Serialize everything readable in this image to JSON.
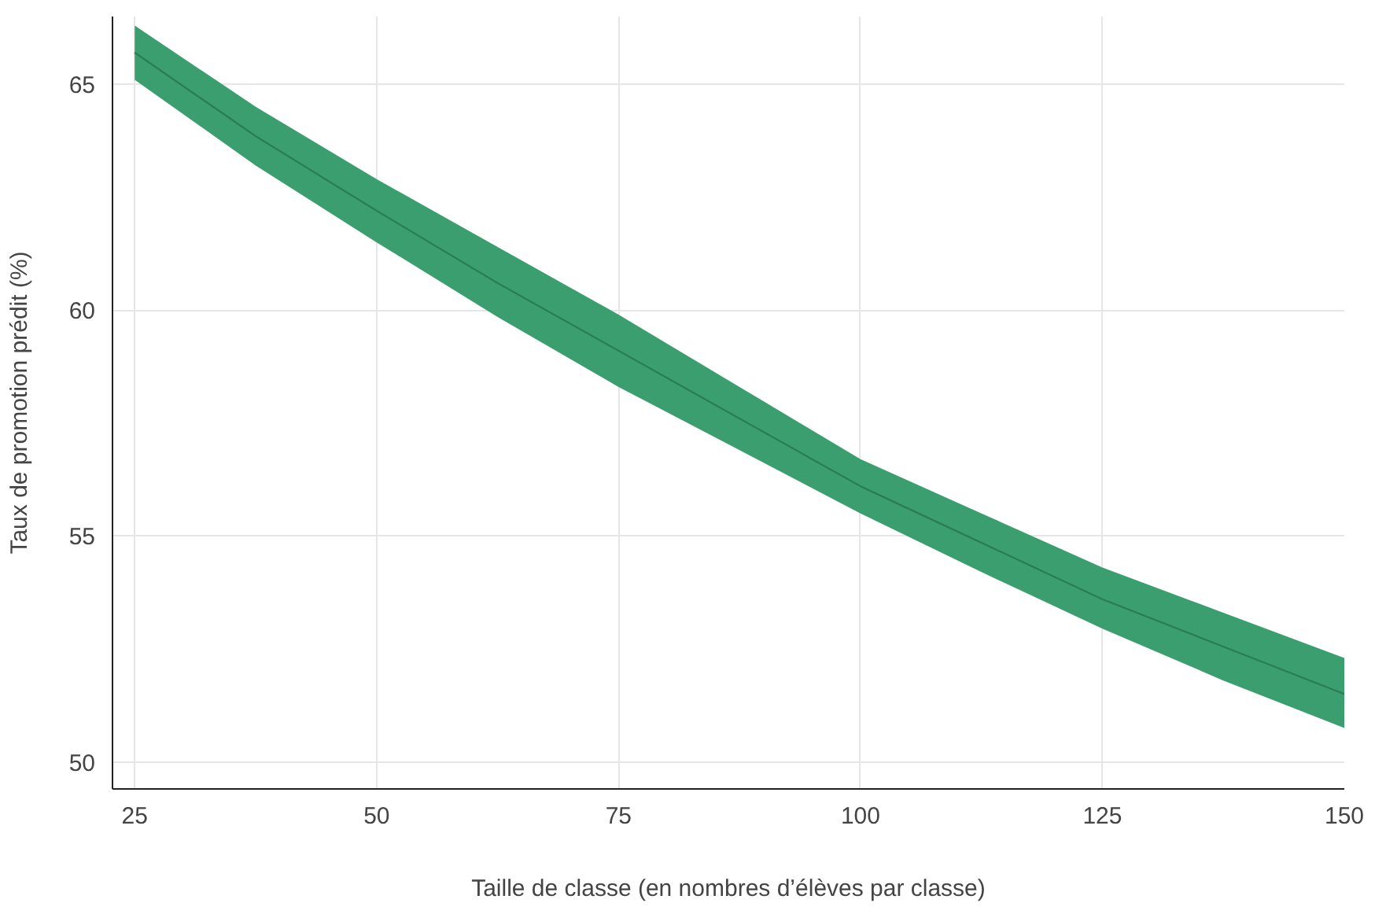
{
  "chart_data": {
    "type": "line",
    "xlabel": "Taille de classe (en nombres d’élèves par classe)",
    "ylabel": "Taux de promotion prédit (%)",
    "x": [
      25,
      37.5,
      50,
      62.5,
      75,
      87.5,
      100,
      112.5,
      125,
      137.5,
      150
    ],
    "series": [
      {
        "color": "#3a9e6e",
        "values": [
          65.7,
          63.85,
          62.2,
          60.6,
          59.1,
          57.6,
          56.1,
          54.85,
          53.6,
          52.55,
          51.5
        ],
        "lower": [
          65.1,
          63.2,
          61.5,
          59.85,
          58.3,
          56.9,
          55.5,
          54.2,
          52.95,
          51.8,
          50.75
        ],
        "upper": [
          66.3,
          64.5,
          62.9,
          61.4,
          59.9,
          58.3,
          56.7,
          55.5,
          54.3,
          53.3,
          52.3
        ]
      }
    ],
    "xlim": [
      22.7,
      150
    ],
    "ylim": [
      49.4,
      66.5
    ],
    "xticks": [
      25,
      50,
      75,
      100,
      125,
      150
    ],
    "yticks": [
      50,
      55,
      60,
      65
    ],
    "grid": true
  }
}
